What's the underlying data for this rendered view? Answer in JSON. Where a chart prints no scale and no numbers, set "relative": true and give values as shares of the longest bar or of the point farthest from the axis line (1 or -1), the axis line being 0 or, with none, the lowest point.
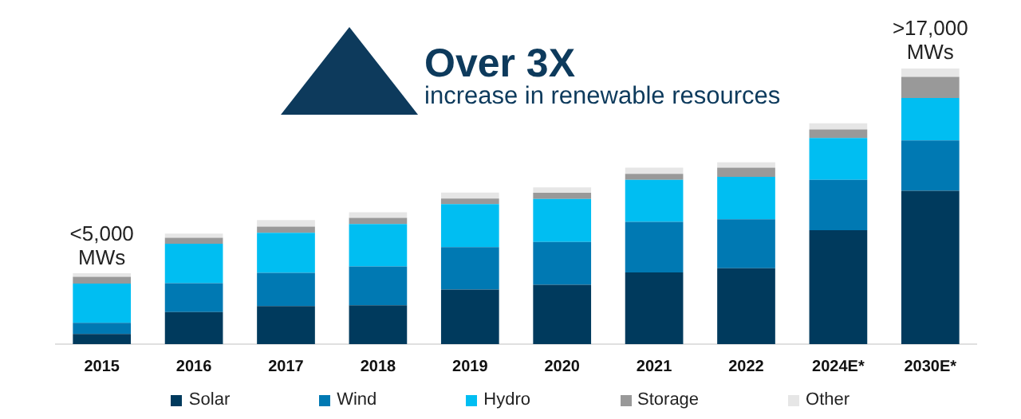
{
  "chart_data": {
    "type": "bar",
    "title": "Over 3X",
    "subtitle": "increase in renewable resources",
    "relative": true,
    "stacked": true,
    "categories": [
      "2015",
      "2016",
      "2017",
      "2018",
      "2019",
      "2020",
      "2021",
      "2022",
      "2024E*",
      "2030E*"
    ],
    "series": [
      {
        "name": "Solar",
        "color": "#003a5d",
        "values": [
          0.037,
          0.116,
          0.138,
          0.141,
          0.198,
          0.215,
          0.26,
          0.275,
          0.413,
          0.556
        ]
      },
      {
        "name": "Wind",
        "color": "#0079b3",
        "values": [
          0.04,
          0.105,
          0.121,
          0.141,
          0.154,
          0.156,
          0.184,
          0.178,
          0.183,
          0.183
        ]
      },
      {
        "name": "Hydro",
        "color": "#00bef2",
        "values": [
          0.143,
          0.143,
          0.145,
          0.154,
          0.156,
          0.156,
          0.152,
          0.154,
          0.152,
          0.154
        ]
      },
      {
        "name": "Storage",
        "color": "#999999",
        "values": [
          0.024,
          0.022,
          0.022,
          0.022,
          0.02,
          0.022,
          0.022,
          0.033,
          0.031,
          0.077
        ]
      },
      {
        "name": "Other",
        "color": "#e6e6e6",
        "values": [
          0.013,
          0.015,
          0.024,
          0.02,
          0.022,
          0.02,
          0.022,
          0.02,
          0.022,
          0.03
        ]
      }
    ],
    "annotations": [
      {
        "text": "<5,000 MWs",
        "x": "2015",
        "y": 0.257
      },
      {
        "text": ">17,000 MWs",
        "x": "2030E*",
        "y": 1.0
      }
    ],
    "grid": false,
    "legend": "bottom"
  }
}
